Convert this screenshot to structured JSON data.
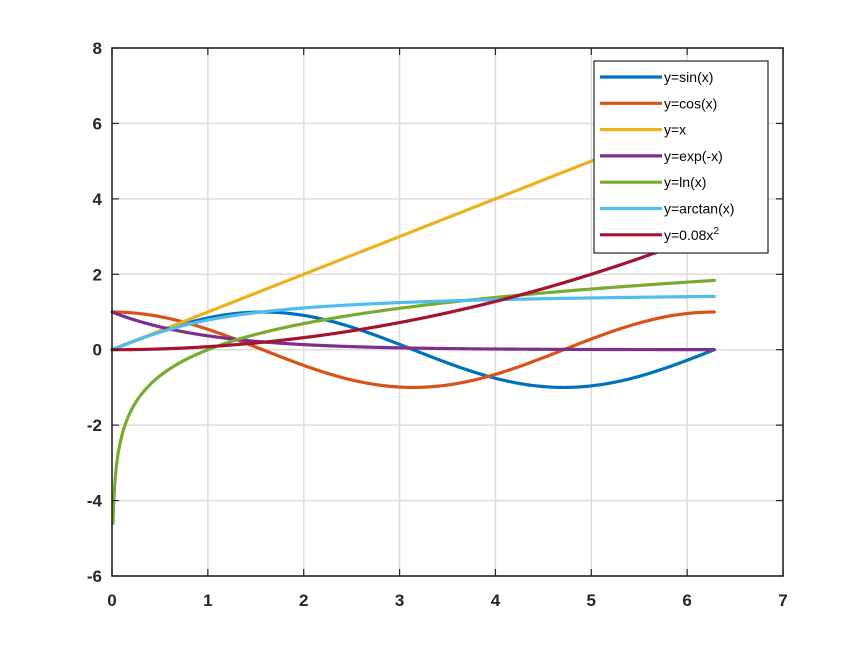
{
  "chart_data": {
    "type": "line",
    "title": "",
    "xlabel": "",
    "ylabel": "",
    "xlim": [
      0,
      7
    ],
    "ylim": [
      -6,
      8
    ],
    "xticks": [
      "0",
      "1",
      "2",
      "3",
      "4",
      "5",
      "6",
      "7"
    ],
    "yticks": [
      "-6",
      "-4",
      "-2",
      "0",
      "2",
      "4",
      "6",
      "8"
    ],
    "grid": true,
    "legend_position": "top-right",
    "x_range": [
      0,
      6.2832
    ],
    "series": [
      {
        "name": "y=sin(x)",
        "color": "#0072BD",
        "expr": "sin",
        "sample_x": [
          0,
          1,
          2,
          3,
          4,
          5,
          6,
          6.2832
        ],
        "sample_y": [
          0,
          0.84,
          0.91,
          0.14,
          -0.76,
          -0.96,
          -0.28,
          0
        ]
      },
      {
        "name": "y=cos(x)",
        "color": "#D95319",
        "expr": "cos",
        "sample_x": [
          0,
          1,
          2,
          3,
          4,
          5,
          6,
          6.2832
        ],
        "sample_y": [
          1,
          0.54,
          -0.42,
          -0.99,
          -0.65,
          0.28,
          0.96,
          1
        ]
      },
      {
        "name": "y=x",
        "color": "#EDB120",
        "expr": "identity",
        "sample_x": [
          0,
          1,
          2,
          3,
          4,
          5,
          6,
          6.2832
        ],
        "sample_y": [
          0,
          1,
          2,
          3,
          4,
          5,
          6,
          6.28
        ]
      },
      {
        "name": "y=exp(-x)",
        "color": "#7E2F8E",
        "expr": "exp_neg",
        "sample_x": [
          0,
          1,
          2,
          3,
          4,
          5,
          6,
          6.2832
        ],
        "sample_y": [
          1,
          0.37,
          0.14,
          0.05,
          0.02,
          0.01,
          0,
          0
        ]
      },
      {
        "name": "y=ln(x)",
        "color": "#77AC30",
        "expr": "ln",
        "sample_x": [
          0.01,
          1,
          2,
          3,
          4,
          5,
          6,
          6.2832
        ],
        "sample_y": [
          -4.6,
          0,
          0.69,
          1.1,
          1.39,
          1.61,
          1.79,
          1.84
        ]
      },
      {
        "name": "y=arctan(x)",
        "color": "#4DBEEE",
        "expr": "arctan",
        "sample_x": [
          0,
          1,
          2,
          3,
          4,
          5,
          6,
          6.2832
        ],
        "sample_y": [
          0,
          0.79,
          1.11,
          1.25,
          1.33,
          1.37,
          1.41,
          1.41
        ]
      },
      {
        "name": "y=0.08x2",
        "color": "#A2142F",
        "expr": "quad",
        "sample_x": [
          0,
          1,
          2,
          3,
          4,
          5,
          6,
          6.2832
        ],
        "sample_y": [
          0,
          0.08,
          0.32,
          0.72,
          1.28,
          2,
          2.88,
          3.16
        ]
      }
    ],
    "legend_labels": [
      {
        "base": "y=sin(x)",
        "sup": ""
      },
      {
        "base": "y=cos(x)",
        "sup": ""
      },
      {
        "base": "y=x",
        "sup": ""
      },
      {
        "base": "y=exp(-x)",
        "sup": ""
      },
      {
        "base": "y=ln(x)",
        "sup": ""
      },
      {
        "base": "y=arctan(x)",
        "sup": ""
      },
      {
        "base": "y=0.08x",
        "sup": "2"
      }
    ]
  }
}
